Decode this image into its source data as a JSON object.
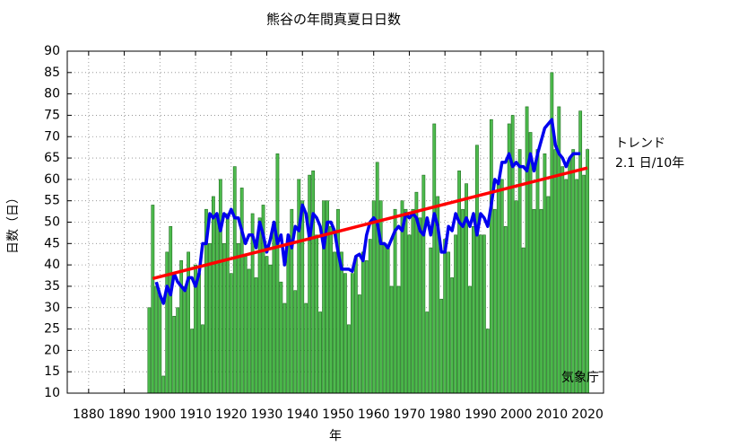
{
  "chart_data": {
    "type": "bar",
    "title": "熊谷の年間真夏日日数",
    "xlabel": "年",
    "ylabel": "日数（日）",
    "x": [
      1897,
      1898,
      1899,
      1900,
      1901,
      1902,
      1903,
      1904,
      1905,
      1906,
      1907,
      1908,
      1909,
      1910,
      1911,
      1912,
      1913,
      1914,
      1915,
      1916,
      1917,
      1918,
      1919,
      1920,
      1921,
      1922,
      1923,
      1924,
      1925,
      1926,
      1927,
      1928,
      1929,
      1930,
      1931,
      1932,
      1933,
      1934,
      1935,
      1936,
      1937,
      1938,
      1939,
      1940,
      1941,
      1942,
      1943,
      1944,
      1945,
      1946,
      1947,
      1948,
      1949,
      1950,
      1951,
      1952,
      1953,
      1954,
      1955,
      1956,
      1957,
      1958,
      1959,
      1960,
      1961,
      1962,
      1963,
      1964,
      1965,
      1966,
      1967,
      1968,
      1969,
      1970,
      1971,
      1972,
      1973,
      1974,
      1975,
      1976,
      1977,
      1978,
      1979,
      1980,
      1981,
      1982,
      1983,
      1984,
      1985,
      1986,
      1987,
      1988,
      1989,
      1990,
      1991,
      1992,
      1993,
      1994,
      1995,
      1996,
      1997,
      1998,
      1999,
      2000,
      2001,
      2002,
      2003,
      2004,
      2005,
      2006,
      2007,
      2008,
      2009,
      2010,
      2011,
      2012,
      2013,
      2014,
      2015,
      2016,
      2017,
      2018,
      2019,
      2020
    ],
    "values": [
      30,
      54,
      35,
      33,
      14,
      43,
      49,
      28,
      30,
      41,
      35,
      43,
      25,
      40,
      38,
      26,
      53,
      45,
      56,
      51,
      60,
      45,
      52,
      38,
      63,
      45,
      58,
      42,
      39,
      52,
      37,
      51,
      54,
      42,
      40,
      50,
      66,
      36,
      31,
      47,
      53,
      34,
      60,
      55,
      31,
      61,
      62,
      47,
      29,
      55,
      55,
      49,
      43,
      53,
      43,
      38,
      26,
      38,
      42,
      33,
      43,
      41,
      46,
      55,
      64,
      55,
      45,
      44,
      35,
      53,
      35,
      55,
      53,
      47,
      53,
      57,
      51,
      61,
      29,
      44,
      73,
      56,
      32,
      46,
      43,
      37,
      47,
      62,
      53,
      59,
      35,
      49,
      68,
      47,
      47,
      25,
      74,
      53,
      59,
      60,
      49,
      73,
      75,
      55,
      67,
      44,
      77,
      71,
      53,
      67,
      53,
      66,
      56,
      85,
      67,
      77,
      63,
      60,
      65,
      67,
      60,
      76,
      61,
      67
    ],
    "color": "#4dbb4d",
    "edgecolor": "#1f6e1f",
    "overlays": [
      {
        "type": "line",
        "color": "#0000ee",
        "x": [
          1899,
          1900,
          1901,
          1902,
          1903,
          1904,
          1905,
          1906,
          1907,
          1908,
          1909,
          1910,
          1911,
          1912,
          1913,
          1914,
          1915,
          1916,
          1917,
          1918,
          1919,
          1920,
          1921,
          1922,
          1923,
          1924,
          1925,
          1926,
          1927,
          1928,
          1929,
          1930,
          1931,
          1932,
          1933,
          1934,
          1935,
          1936,
          1937,
          1938,
          1939,
          1940,
          1941,
          1942,
          1943,
          1944,
          1945,
          1946,
          1947,
          1948,
          1949,
          1950,
          1951,
          1952,
          1953,
          1954,
          1955,
          1956,
          1957,
          1958,
          1959,
          1960,
          1961,
          1962,
          1963,
          1964,
          1965,
          1966,
          1967,
          1968,
          1969,
          1970,
          1971,
          1972,
          1973,
          1974,
          1975,
          1976,
          1977,
          1978,
          1979,
          1980,
          1981,
          1982,
          1983,
          1984,
          1985,
          1986,
          1987,
          1988,
          1989,
          1990,
          1991,
          1992,
          1993,
          1994,
          1995,
          1996,
          1997,
          1998,
          1999,
          2000,
          2001,
          2002,
          2003,
          2004,
          2005,
          2006,
          2007,
          2008,
          2009,
          2010,
          2011,
          2012,
          2013,
          2014,
          2015,
          2016,
          2017,
          2018
        ],
        "values": [
          36,
          33,
          31,
          35,
          33,
          38,
          36,
          35,
          34,
          37,
          37,
          35,
          38,
          45,
          45,
          52,
          51,
          52,
          48,
          52,
          51,
          53,
          51,
          51,
          48,
          45,
          47,
          47,
          44,
          50,
          47,
          43,
          46,
          50,
          45,
          47,
          40,
          47,
          44,
          49,
          48,
          54,
          52,
          46,
          52,
          51,
          49,
          44,
          50,
          50,
          48,
          43,
          39,
          39,
          39,
          38.5,
          42,
          42.5,
          41,
          47,
          50,
          51,
          50,
          45,
          45,
          44,
          46,
          48,
          49,
          48,
          52,
          51,
          52,
          51,
          48,
          47,
          51,
          47,
          52,
          49,
          43,
          43,
          49,
          48,
          52,
          50,
          49,
          51,
          49,
          52,
          47,
          52,
          51,
          49,
          54,
          60,
          59,
          64,
          64,
          66,
          63,
          64,
          63,
          63,
          62,
          66,
          62,
          66,
          69,
          72,
          73,
          74,
          68,
          66,
          65,
          63,
          65,
          66,
          66,
          66
        ]
      },
      {
        "type": "line",
        "color": "#ff0000",
        "x": [
          1898,
          2020
        ],
        "values": [
          36.8,
          62.7
        ]
      }
    ],
    "annotations": [
      "トレンド",
      "2.1 日/10年",
      "気象庁"
    ],
    "xlim": [
      1874,
      2024.5
    ],
    "ylim": [
      10,
      90
    ],
    "xticks": [
      1880,
      1890,
      1900,
      1910,
      1920,
      1930,
      1940,
      1950,
      1960,
      1970,
      1980,
      1990,
      2000,
      2010,
      2020
    ],
    "yticks": [
      10,
      15,
      20,
      25,
      30,
      35,
      40,
      45,
      50,
      55,
      60,
      65,
      70,
      75,
      80,
      85,
      90
    ],
    "grid": true
  }
}
